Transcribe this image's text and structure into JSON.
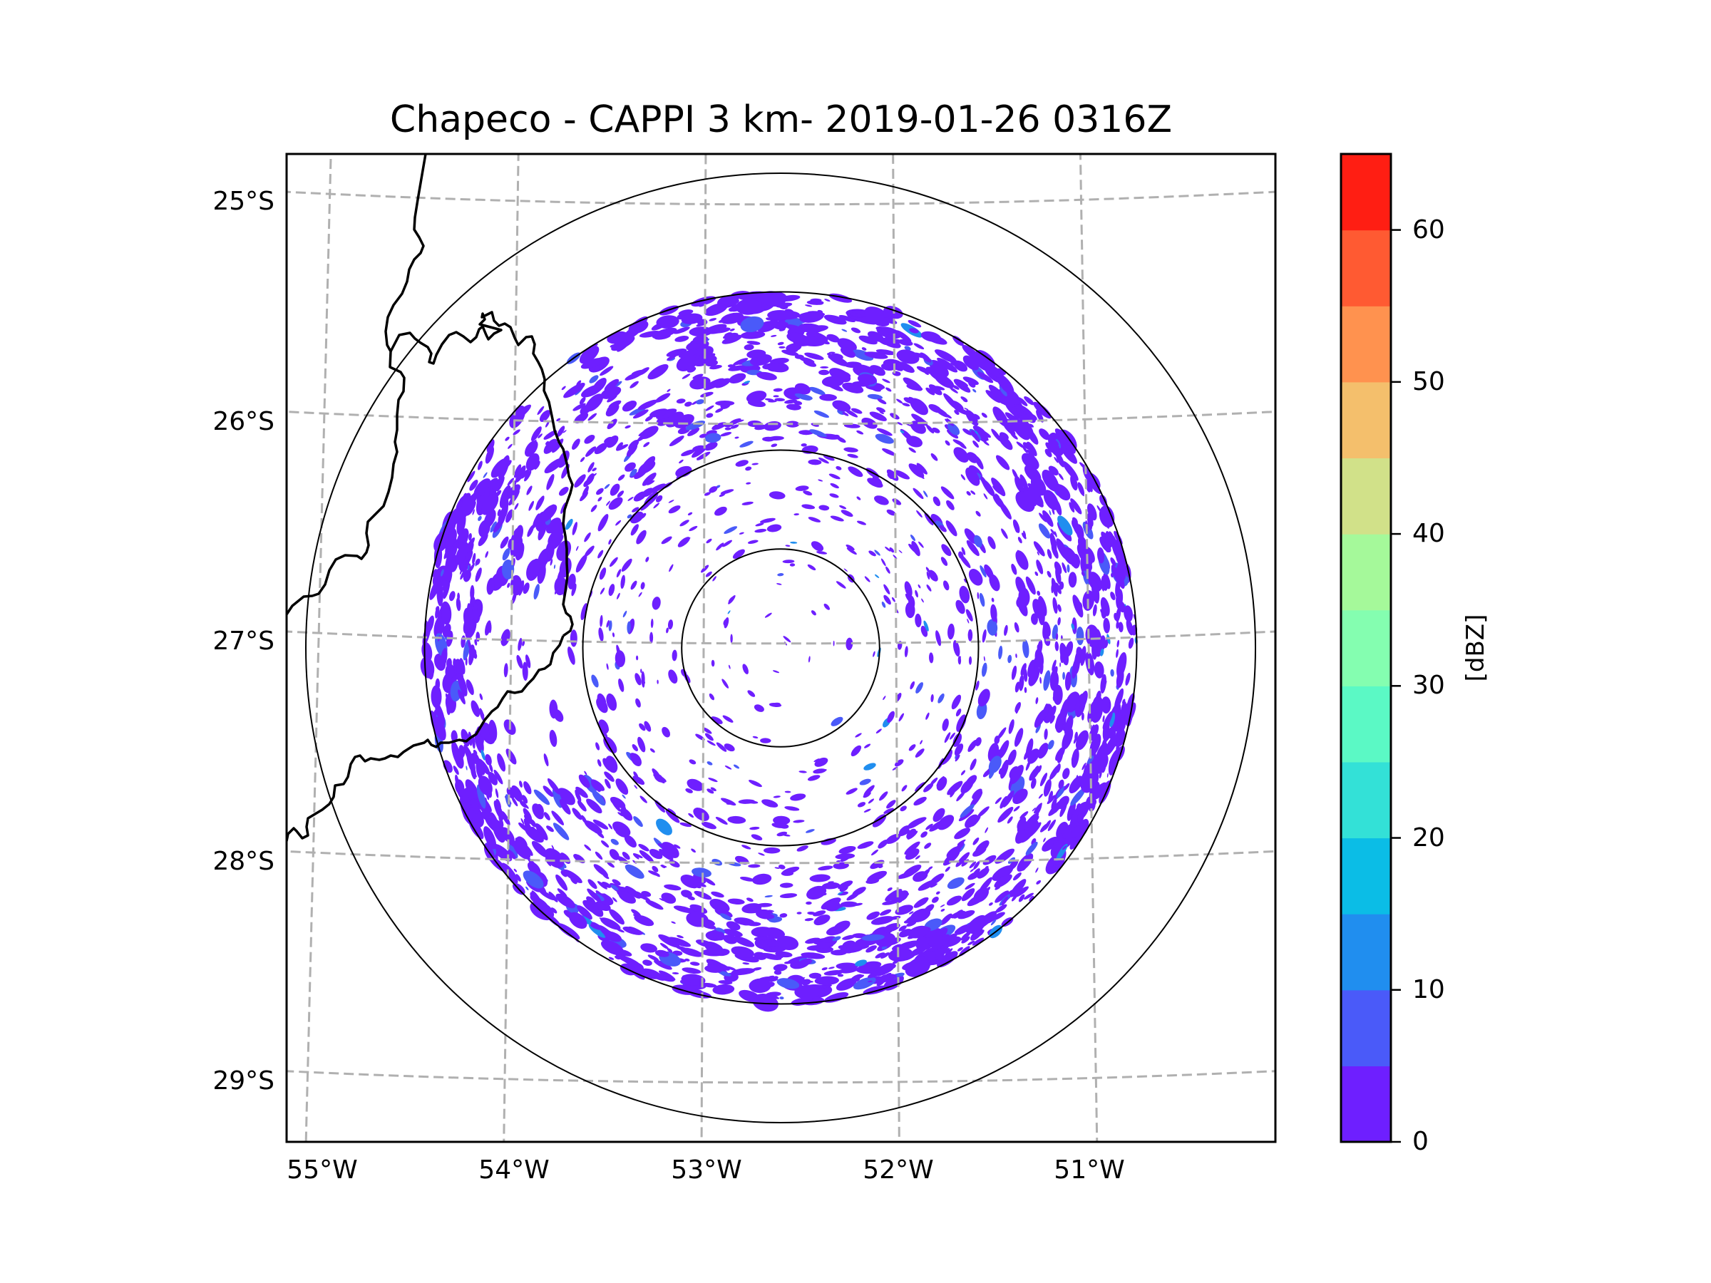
{
  "chart_data": {
    "type": "heatmap",
    "subtype": "radar-ppi-map",
    "title": "Chapeco - CAPPI 3 km- 2019-01-26 0316Z",
    "radar_site": "Chapeco",
    "product": "CAPPI 3 km",
    "datetime": "2019-01-26 0316Z",
    "xlabel": "",
    "ylabel": "",
    "x_ticks": [
      {
        "value": -55,
        "label": "55°W"
      },
      {
        "value": -54,
        "label": "54°W"
      },
      {
        "value": -53,
        "label": "53°W"
      },
      {
        "value": -52,
        "label": "52°W"
      },
      {
        "value": -51,
        "label": "51°W"
      }
    ],
    "y_ticks": [
      {
        "value": -25,
        "label": "25°S"
      },
      {
        "value": -26,
        "label": "26°S"
      },
      {
        "value": -27,
        "label": "27°S"
      },
      {
        "value": -28,
        "label": "28°S"
      },
      {
        "value": -29,
        "label": "29°S"
      }
    ],
    "xlim_deg": [
      -55.17,
      -50.05
    ],
    "ylim_deg": [
      -29.28,
      -24.78
    ],
    "grid": true,
    "grid_style": "dashed",
    "radar_center_deg": {
      "lon": -52.6,
      "lat": -27.02
    },
    "range_rings_km": [
      50,
      100,
      180,
      240
    ],
    "echo_max_range_km": 180,
    "echo_description": "Widespread weak reflectivity (0-10 dBZ) speckle, densest in outer annulus (100-180 km), sparse near radar",
    "echo_dominant_dbz_bin": [
      0,
      5
    ],
    "colorbar": {
      "label": "[dBZ]",
      "position": "right",
      "vmin": 0,
      "vmax": 65,
      "ticks": [
        0,
        10,
        20,
        30,
        40,
        50,
        60
      ],
      "tick_labels": [
        "0",
        "10",
        "20",
        "30",
        "40",
        "50",
        "60"
      ],
      "bins": [
        {
          "from": 0,
          "to": 5,
          "color": "#6e1fff"
        },
        {
          "from": 5,
          "to": 10,
          "color": "#4a5af9"
        },
        {
          "from": 10,
          "to": 15,
          "color": "#208eef"
        },
        {
          "from": 15,
          "to": 20,
          "color": "#0bbde6"
        },
        {
          "from": 20,
          "to": 25,
          "color": "#33e1d7"
        },
        {
          "from": 25,
          "to": 30,
          "color": "#5bf9c5"
        },
        {
          "from": 30,
          "to": 35,
          "color": "#84feb0"
        },
        {
          "from": 35,
          "to": 40,
          "color": "#a5f99a"
        },
        {
          "from": 40,
          "to": 45,
          "color": "#d1e189"
        },
        {
          "from": 45,
          "to": 50,
          "color": "#f4bf6c"
        },
        {
          "from": 50,
          "to": 55,
          "color": "#ff924f"
        },
        {
          "from": 55,
          "to": 60,
          "color": "#ff5a32"
        },
        {
          "from": 60,
          "to": 65,
          "color": "#ff1e13"
        }
      ]
    },
    "map_features": [
      "state/country borders (black lines)"
    ]
  }
}
